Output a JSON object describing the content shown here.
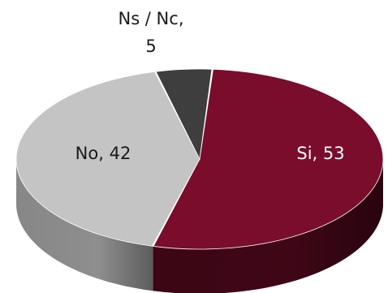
{
  "chart_data": {
    "type": "pie",
    "style": "3d",
    "categories": [
      "Si",
      "No",
      "Ns / Nc"
    ],
    "values": [
      53,
      42,
      5
    ],
    "series": [
      {
        "values": [
          53,
          42,
          5
        ]
      }
    ],
    "labels": [
      {
        "lines": [
          "Si, 53"
        ]
      },
      {
        "lines": [
          "No, 42"
        ]
      },
      {
        "lines": [
          "Ns / Nc,",
          "5"
        ]
      }
    ],
    "colors": [
      "#7a0c2c",
      "#c4c4c4",
      "#3e3e3e"
    ],
    "side_colors": [
      "#3f0616",
      "#8e8e8e",
      "#222222"
    ],
    "legend": "none",
    "title": ""
  }
}
